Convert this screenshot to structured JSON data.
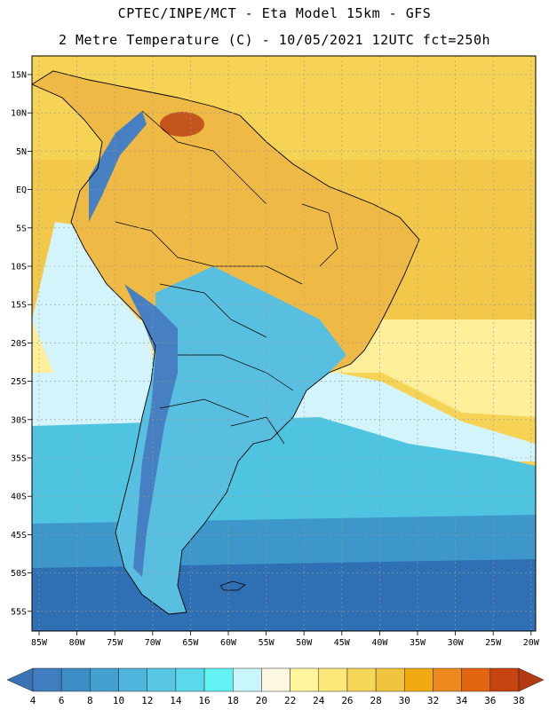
{
  "title_line1": "CPTEC/INPE/MCT -  Eta Model 15km - GFS",
  "title_line2": "2 Metre Temperature (C) - 10/05/2021 12UTC fct=250h",
  "latitude_labels": [
    "15N",
    "10N",
    "5N",
    "EQ",
    "5S",
    "10S",
    "15S",
    "20S",
    "25S",
    "30S",
    "35S",
    "40S",
    "45S",
    "50S",
    "55S"
  ],
  "longitude_labels": [
    "85W",
    "80W",
    "75W",
    "70W",
    "65W",
    "60W",
    "55W",
    "50W",
    "45W",
    "40W",
    "35W",
    "30W",
    "25W",
    "20W"
  ],
  "colorbar": {
    "labels": [
      "4",
      "6",
      "8",
      "10",
      "12",
      "14",
      "16",
      "18",
      "20",
      "22",
      "24",
      "26",
      "28",
      "30",
      "32",
      "34",
      "36",
      "38"
    ],
    "colors": [
      "#3f7dbf",
      "#3c8cc6",
      "#45a0d2",
      "#4fb5dc",
      "#57c7e3",
      "#5ad9ea",
      "#62f2f4",
      "#c9f6fb",
      "#fdf8e4",
      "#fff59c",
      "#fbe77a",
      "#f6d659",
      "#f0c43f",
      "#f2aa13",
      "#ec8a1f",
      "#e26512",
      "#c64410"
    ],
    "low_arrow_color": "#3a72b6",
    "high_arrow_color": "#b33a12"
  },
  "palette": {
    "ocean_warm": "#f6d255",
    "ocean_tropical": "#f3c84a",
    "ocean_mild": "#ffef9a",
    "ocean_cool": "#d3f4fa",
    "ocean_cold": "#4fc4e0",
    "ocean_colder": "#3e97cb",
    "ocean_coldest": "#2f6fb4",
    "land_north": "#efb946",
    "land_hot": "#c4551b",
    "andes": "#4680c2",
    "land_south": "#58bfe0",
    "coastline": "#000000",
    "grid": "#9a9a9a"
  }
}
